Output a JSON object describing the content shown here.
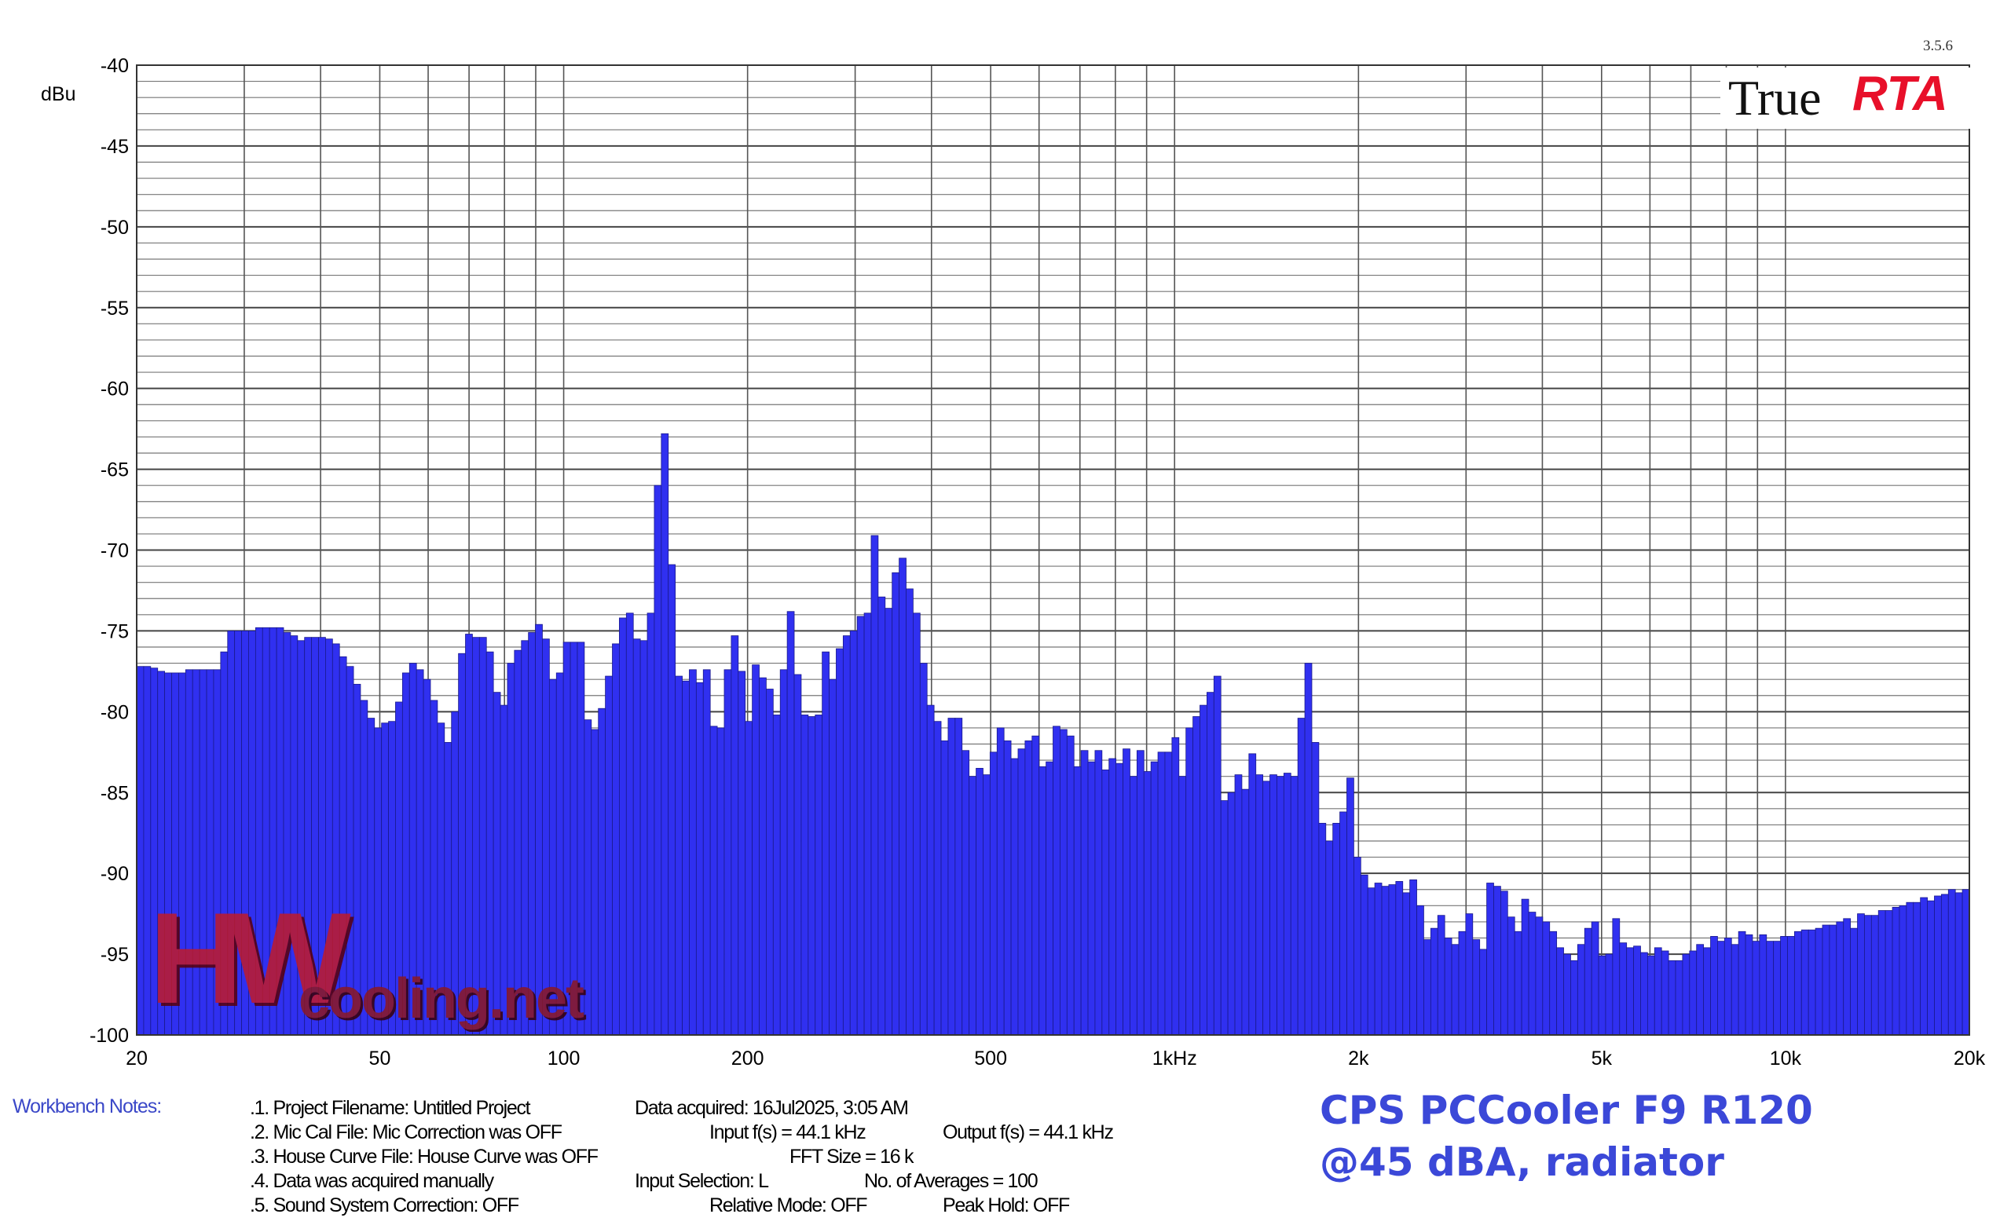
{
  "version": "3.5.6",
  "logo": {
    "word1": "True",
    "word2": "RTA"
  },
  "watermark": {
    "text": "HWcooling.net"
  },
  "chart_data": {
    "type": "bar",
    "title": "CPS PCCooler F9 R120",
    "subtitle": "@45 dBA, radiator",
    "ylabel": "dBu",
    "xscale": "log",
    "xlim": [
      20,
      20000
    ],
    "ylim": [
      -100,
      -40
    ],
    "grid": true,
    "bar_color": "#3030f0",
    "bar_edge_color": "#1a1a8c",
    "y_ticks": [
      -40,
      -45,
      -50,
      -55,
      -60,
      -65,
      -70,
      -75,
      -80,
      -85,
      -90,
      -95,
      -100
    ],
    "x_ticks": [
      {
        "value": 20,
        "label": "20"
      },
      {
        "value": 50,
        "label": "50"
      },
      {
        "value": 100,
        "label": "100"
      },
      {
        "value": 200,
        "label": "200"
      },
      {
        "value": 500,
        "label": "500"
      },
      {
        "value": 1000,
        "label": "1kHz"
      },
      {
        "value": 2000,
        "label": "2k"
      },
      {
        "value": 5000,
        "label": "5k"
      },
      {
        "value": 10000,
        "label": "10k"
      },
      {
        "value": 20000,
        "label": "20k"
      }
    ],
    "x_band_edges": [
      20,
      20000
    ],
    "values": [
      -77.2,
      -77.2,
      -77.3,
      -77.5,
      -77.6,
      -77.6,
      -77.6,
      -77.4,
      -77.4,
      -77.4,
      -77.4,
      -77.4,
      -76.3,
      -75.0,
      -75.0,
      -75.0,
      -75.0,
      -74.8,
      -74.8,
      -74.8,
      -74.8,
      -75.1,
      -75.3,
      -75.6,
      -75.4,
      -75.4,
      -75.4,
      -75.5,
      -75.8,
      -76.6,
      -77.2,
      -78.3,
      -79.3,
      -80.4,
      -81.0,
      -80.7,
      -80.6,
      -79.4,
      -77.6,
      -77.0,
      -77.4,
      -78.0,
      -79.3,
      -80.7,
      -81.9,
      -80.0,
      -76.4,
      -75.2,
      -75.4,
      -75.4,
      -76.3,
      -78.8,
      -79.6,
      -77.0,
      -76.2,
      -75.6,
      -75.1,
      -74.6,
      -75.5,
      -78.0,
      -77.6,
      -75.7,
      -75.7,
      -75.7,
      -80.5,
      -81.1,
      -79.8,
      -77.8,
      -75.8,
      -74.2,
      -73.9,
      -75.5,
      -75.6,
      -73.9,
      -66.0,
      -62.8,
      -70.9,
      -77.8,
      -78.1,
      -77.4,
      -78.2,
      -77.4,
      -80.9,
      -81.0,
      -77.4,
      -75.3,
      -77.5,
      -80.6,
      -77.1,
      -77.9,
      -78.6,
      -80.2,
      -77.4,
      -73.8,
      -77.7,
      -80.2,
      -80.3,
      -80.2,
      -76.3,
      -78.0,
      -76.1,
      -75.3,
      -75.0,
      -74.1,
      -73.9,
      -69.1,
      -72.9,
      -73.6,
      -71.4,
      -70.5,
      -72.4,
      -73.9,
      -77.0,
      -79.6,
      -80.6,
      -81.8,
      -80.4,
      -80.4,
      -82.4,
      -84.0,
      -83.5,
      -83.9,
      -82.5,
      -81.0,
      -81.8,
      -82.9,
      -82.3,
      -81.8,
      -81.5,
      -83.4,
      -83.1,
      -80.9,
      -81.1,
      -81.5,
      -83.4,
      -82.4,
      -83.1,
      -82.4,
      -83.6,
      -82.9,
      -83.2,
      -82.3,
      -84.0,
      -82.4,
      -83.7,
      -83.1,
      -82.5,
      -82.5,
      -81.6,
      -84.0,
      -81.0,
      -80.3,
      -79.6,
      -78.8,
      -77.8,
      -85.5,
      -85.0,
      -83.9,
      -84.8,
      -82.6,
      -83.9,
      -84.3,
      -83.9,
      -84.0,
      -83.8,
      -84.0,
      -80.4,
      -77.0,
      -81.9,
      -86.9,
      -88.0,
      -86.9,
      -86.2,
      -84.1,
      -89.0,
      -90.1,
      -90.9,
      -90.6,
      -90.8,
      -90.7,
      -90.5,
      -91.2,
      -90.4,
      -92.0,
      -94.1,
      -93.4,
      -92.6,
      -94.0,
      -94.4,
      -93.6,
      -92.5,
      -94.1,
      -94.7,
      -90.6,
      -90.8,
      -91.1,
      -92.7,
      -93.6,
      -91.6,
      -92.4,
      -92.7,
      -93.0,
      -93.6,
      -94.6,
      -95.0,
      -95.4,
      -94.4,
      -93.4,
      -93.0,
      -95.1,
      -95.0,
      -92.8,
      -94.3,
      -94.6,
      -94.5,
      -94.9,
      -95.1,
      -94.6,
      -94.8,
      -95.4,
      -95.4,
      -95.0,
      -94.8,
      -94.4,
      -94.6,
      -93.9,
      -94.2,
      -94.0,
      -94.4,
      -93.6,
      -93.8,
      -94.2,
      -93.8,
      -94.2,
      -94.2,
      -93.9,
      -93.9,
      -93.6,
      -93.5,
      -93.5,
      -93.4,
      -93.2,
      -93.2,
      -93.0,
      -92.8,
      -93.4,
      -92.5,
      -92.6,
      -92.6,
      -92.3,
      -92.3,
      -92.1,
      -92.0,
      -91.8,
      -91.8,
      -91.5,
      -91.7,
      -91.4,
      -91.3,
      -91.0,
      -91.2,
      -91.0
    ]
  },
  "y_axis_unit": "dBu",
  "notes": {
    "label": "Workbench Notes:",
    "lines": [
      {
        "text": ".1. Project Filename: Untitled Project",
        "col": 1,
        "row": 0
      },
      {
        "text": ".2. Mic Cal File: Mic Correction was OFF",
        "col": 1,
        "row": 1
      },
      {
        "text": ".3. House Curve File: House Curve was OFF",
        "col": 1,
        "row": 2
      },
      {
        "text": ".4. Data was acquired manually",
        "col": 1,
        "row": 3
      },
      {
        "text": ".5. Sound System Correction: OFF",
        "col": 1,
        "row": 4
      },
      {
        "text": "Data acquired: 16Jul2025, 3:05 AM",
        "col": 2,
        "row": 0
      },
      {
        "text": "Input f(s) = 44.1 kHz",
        "col": 3,
        "row": 1
      },
      {
        "text": "Output f(s) = 44.1 kHz",
        "col": 4,
        "row": 1
      },
      {
        "text": "FFT Size = 16 k",
        "col": 5,
        "row": 2
      },
      {
        "text": "Input Selection: L",
        "col": 2,
        "row": 3
      },
      {
        "text": "No. of Averages = 100",
        "col": 6,
        "row": 3
      },
      {
        "text": "Relative Mode:  OFF",
        "col": 3,
        "row": 4
      },
      {
        "text": "Peak Hold: OFF",
        "col": 4,
        "row": 4
      }
    ]
  }
}
